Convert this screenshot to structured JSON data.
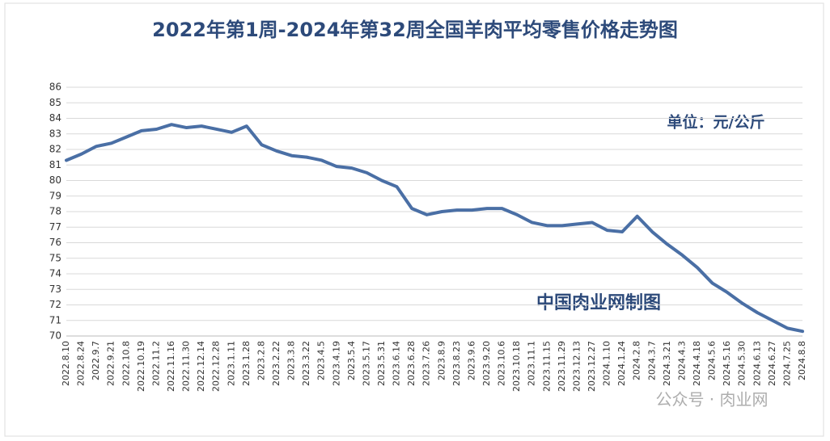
{
  "chart_data": {
    "type": "line",
    "title": "2022年第1周-2024年第32周全国羊肉平均零售价格走势图",
    "annotations": [
      "单位：元/公斤",
      "中国肉业网制图",
      "公众号 · 肉业网"
    ],
    "categories": [
      "2022.8.10",
      "2022.8.24",
      "2022.9.7",
      "2022.9.21",
      "2022.10.8",
      "2022.10.19",
      "2022.11.2",
      "2022.11.16",
      "2022.11.30",
      "2022.12.14",
      "2022.12.28",
      "2023.1.11",
      "2023.1.28",
      "2023.2.8",
      "2023.2.22",
      "2023.3.8",
      "2023.3.22",
      "2023.4.5",
      "2023.4.19",
      "2023.5.4",
      "2023.5.17",
      "2023.5.31",
      "2023.6.14",
      "2023.6.28",
      "2023.7.26",
      "2023.8.9",
      "2023.8.23",
      "2023.9.6",
      "2023.9.20",
      "2023.10.6",
      "2023.10.18",
      "2023.11.1",
      "2023.11.15",
      "2023.11.29",
      "2023.12.13",
      "2023.12.27",
      "2024.1.10",
      "2024.1.24",
      "2024.2.8",
      "2024.3.7",
      "2024.3.21",
      "2024.4.3",
      "2024.4.18",
      "2024.5.6",
      "2024.5.16",
      "2024.5.30",
      "2024.6.13",
      "2024.6.27",
      "2024.7.25",
      "2024.8.8"
    ],
    "values": [
      81.3,
      81.7,
      82.2,
      82.4,
      82.8,
      83.2,
      83.3,
      83.6,
      83.4,
      83.5,
      83.3,
      83.1,
      83.5,
      82.3,
      81.9,
      81.6,
      81.5,
      81.3,
      80.9,
      80.8,
      80.5,
      80.0,
      79.6,
      78.2,
      77.8,
      78.0,
      78.1,
      78.1,
      78.2,
      78.2,
      77.8,
      77.3,
      77.1,
      77.1,
      77.2,
      77.3,
      76.8,
      76.7,
      77.7,
      76.7,
      75.9,
      75.2,
      74.4,
      73.4,
      72.8,
      72.1,
      71.5,
      71.0,
      70.5,
      70.3
    ],
    "color": "#4a6fa5",
    "ylim": [
      70,
      86
    ],
    "yticks": [
      70,
      71,
      72,
      73,
      74,
      75,
      76,
      77,
      78,
      79,
      80,
      81,
      82,
      83,
      84,
      85,
      86
    ],
    "grid": true
  }
}
